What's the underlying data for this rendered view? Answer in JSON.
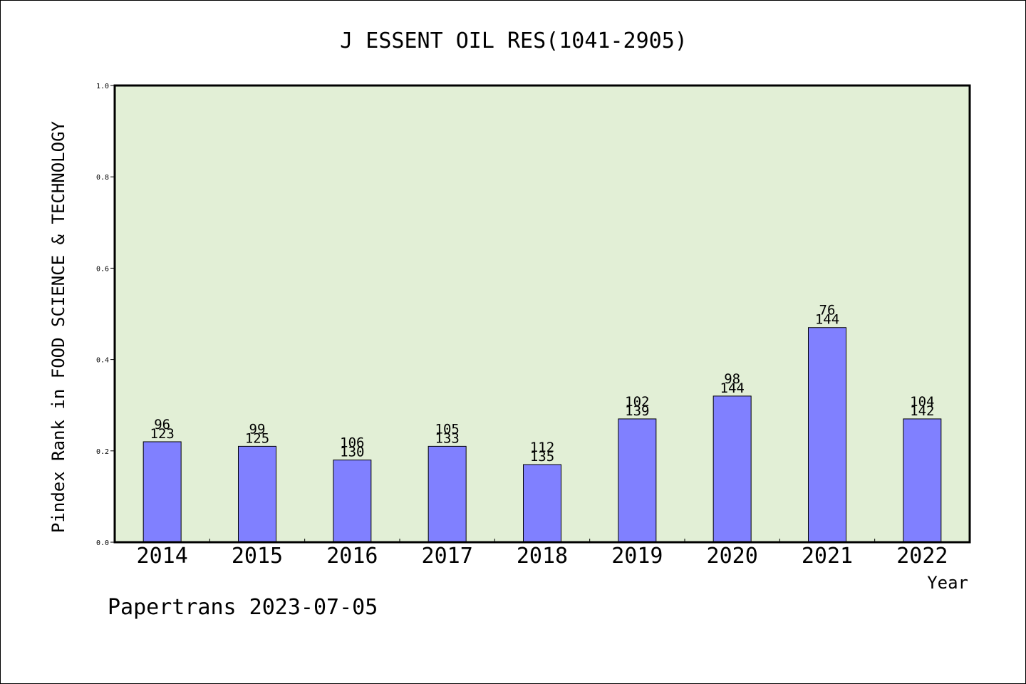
{
  "footer": "Papertrans 2023-07-05",
  "colors": {
    "plot_background": "#e2efd6",
    "bar_fill": "#8080ff",
    "bar_stroke": "#000000",
    "text": "#000000"
  },
  "chart_data": {
    "type": "bar",
    "title": "J ESSENT OIL RES(1041-2905)",
    "xlabel": "Year",
    "ylabel": "Pindex Rank in FOOD SCIENCE & TECHNOLOGY",
    "ylim": [
      0,
      1.0
    ],
    "yticks": [
      "0.0",
      "0.2",
      "0.4",
      "0.6",
      "0.8",
      "1.0"
    ],
    "grid": false,
    "categories": [
      "2014",
      "2015",
      "2016",
      "2017",
      "2018",
      "2019",
      "2020",
      "2021",
      "2022"
    ],
    "values": [
      0.22,
      0.21,
      0.18,
      0.21,
      0.17,
      0.27,
      0.32,
      0.47,
      0.27
    ],
    "rank_labels": [
      "96",
      "99",
      "106",
      "105",
      "112",
      "102",
      "98",
      "76",
      "104"
    ],
    "total_labels": [
      "123",
      "125",
      "130",
      "133",
      "135",
      "139",
      "144",
      "144",
      "142"
    ]
  }
}
